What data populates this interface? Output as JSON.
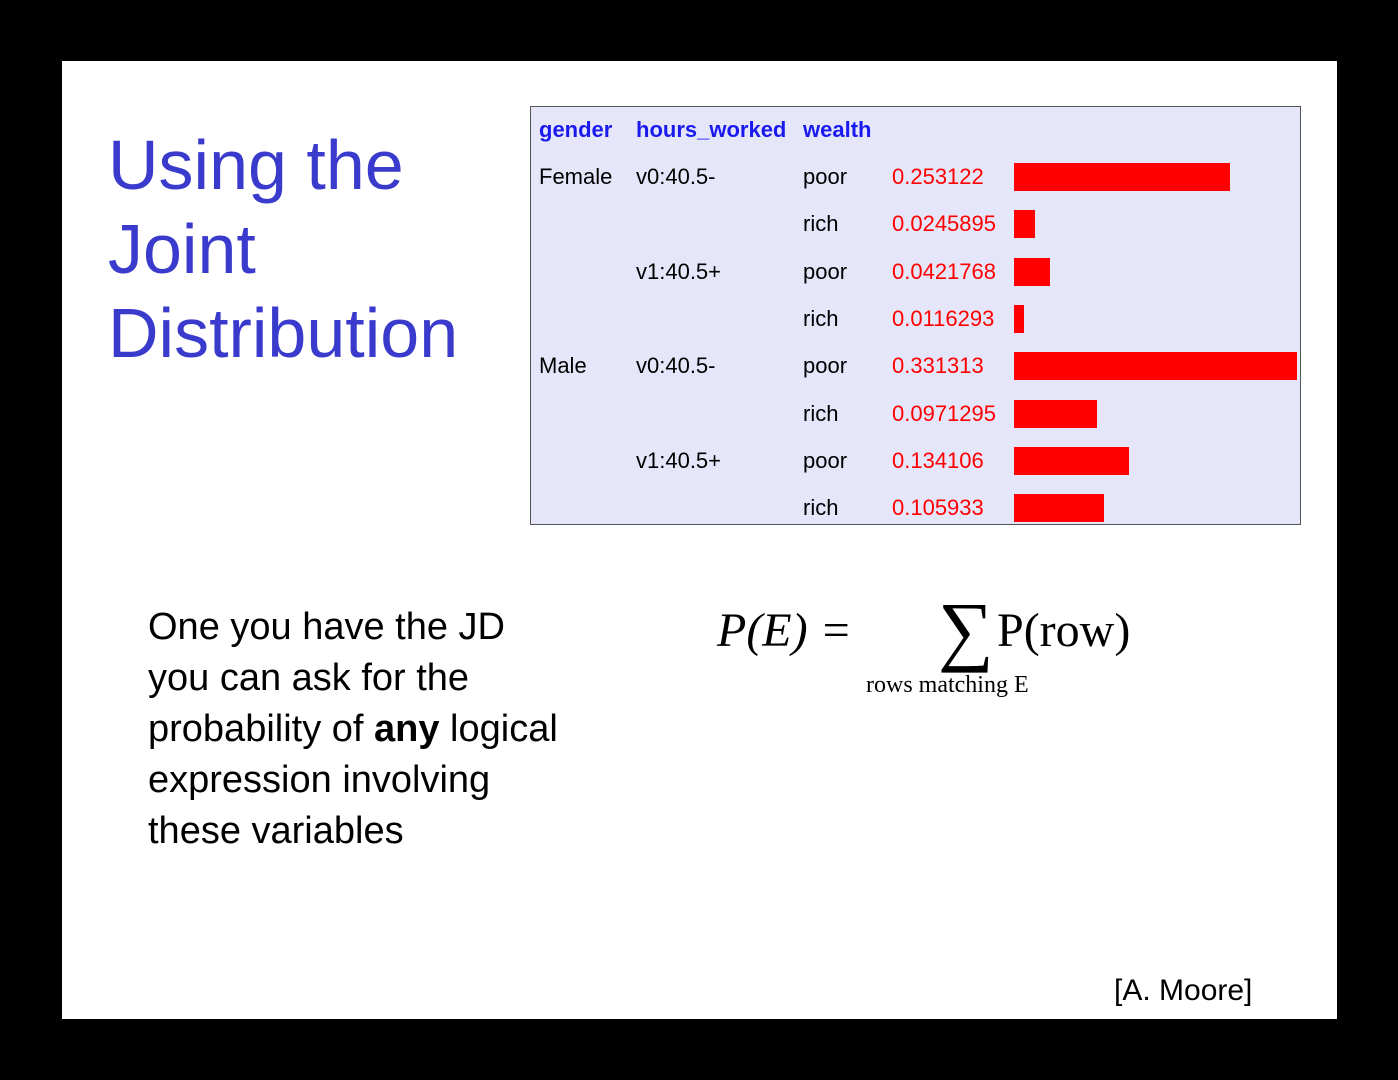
{
  "title": {
    "lines": [
      "Using the",
      "Joint",
      "Distribution"
    ]
  },
  "table": {
    "headers": [
      "gender",
      "hours_worked",
      "wealth"
    ],
    "rows": [
      {
        "gender": "Female",
        "hours": "v0:40.5-",
        "wealth": "poor",
        "prob": "0.253122",
        "value": 0.253122
      },
      {
        "gender": "",
        "hours": "",
        "wealth": "rich",
        "prob": "0.0245895",
        "value": 0.0245895
      },
      {
        "gender": "",
        "hours": "v1:40.5+",
        "wealth": "poor",
        "prob": "0.0421768",
        "value": 0.0421768
      },
      {
        "gender": "",
        "hours": "",
        "wealth": "rich",
        "prob": "0.0116293",
        "value": 0.0116293
      },
      {
        "gender": "Male",
        "hours": "v0:40.5-",
        "wealth": "poor",
        "prob": "0.331313",
        "value": 0.331313
      },
      {
        "gender": "",
        "hours": "",
        "wealth": "rich",
        "prob": "0.0971295",
        "value": 0.0971295
      },
      {
        "gender": "",
        "hours": "v1:40.5+",
        "wealth": "poor",
        "prob": "0.134106",
        "value": 0.134106
      },
      {
        "gender": "",
        "hours": "",
        "wealth": "rich",
        "prob": "0.105933",
        "value": 0.105933
      }
    ],
    "bar_color": "#ff0000",
    "header_color": "#1a1aee",
    "background": "#e6e6fa"
  },
  "body": {
    "line1": "One you have the JD",
    "line2": "you can ask for the",
    "line3_pre": "probability of ",
    "line3_bold": "any",
    "line3_post": " logical",
    "line4": "expression involving",
    "line5": "these variables"
  },
  "formula": {
    "lhs": "P(E) =",
    "sigma": "∑",
    "rhs": "P(row)",
    "subscript": "rows matching E"
  },
  "credit": "[A. Moore]",
  "colors": {
    "title": "#3a3acc",
    "background": "#000000",
    "slide": "#ffffff"
  }
}
